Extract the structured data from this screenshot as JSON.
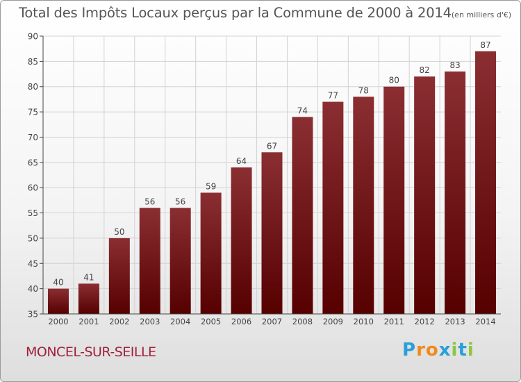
{
  "chart_data": {
    "type": "bar",
    "title": "Total des Impôts Locaux perçus par la Commune de 2000 à 2014",
    "unit": "(en milliers d'€)",
    "categories": [
      "2000",
      "2001",
      "2002",
      "2003",
      "2004",
      "2005",
      "2006",
      "2007",
      "2008",
      "2009",
      "2010",
      "2011",
      "2012",
      "2013",
      "2014"
    ],
    "values": [
      40,
      41,
      50,
      56,
      56,
      59,
      64,
      67,
      74,
      77,
      78,
      80,
      82,
      83,
      87
    ],
    "ylim": [
      35,
      90
    ],
    "yticks": [
      35,
      40,
      45,
      50,
      55,
      60,
      65,
      70,
      75,
      80,
      85,
      90
    ],
    "xlabel": "",
    "ylabel": "",
    "grid": true,
    "bar_color_top": "#8a2e32",
    "bar_color_bottom": "#560000"
  },
  "footer": {
    "commune": "MONCEL-SUR-SEILLE",
    "logo_letters": [
      {
        "char": "P",
        "color": "#2a9fd8"
      },
      {
        "char": "r",
        "color": "#f08a1c"
      },
      {
        "char": "o",
        "color": "#f08a1c"
      },
      {
        "char": "x",
        "color": "#2a9fd8"
      },
      {
        "char": "i",
        "color": "#8cc63f"
      },
      {
        "char": "t",
        "color": "#2a9fd8"
      },
      {
        "char": "i",
        "color": "#8cc63f"
      }
    ]
  }
}
